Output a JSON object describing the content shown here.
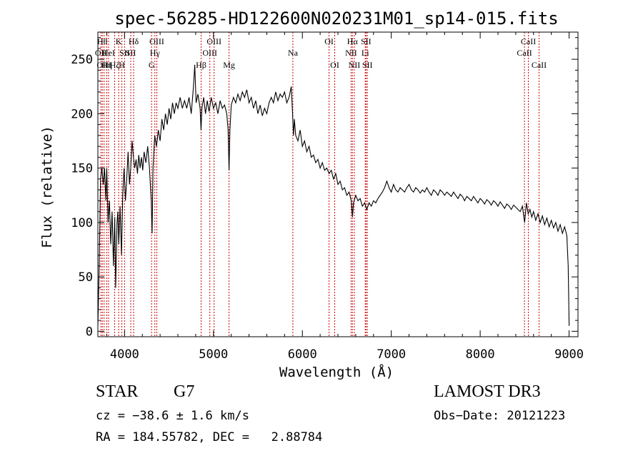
{
  "chart_data": {
    "type": "line",
    "title": "spec-56285-HD122600N020231M01_sp14-015.fits",
    "xlabel": "Wavelength (Å)",
    "ylabel": "Flux (relative)",
    "xlim": [
      3700,
      9100
    ],
    "ylim": [
      -5,
      275
    ],
    "xticks": [
      4000,
      5000,
      6000,
      7000,
      8000,
      9000
    ],
    "yticks": [
      0,
      50,
      100,
      150,
      200,
      250
    ],
    "grid": false,
    "line_color": "#000000",
    "marker_color": "#cc0000",
    "series": [
      {
        "points": [
          [
            3700,
            5
          ],
          [
            3715,
            60
          ],
          [
            3730,
            140
          ],
          [
            3745,
            150
          ],
          [
            3760,
            135
          ],
          [
            3775,
            150
          ],
          [
            3790,
            120
          ],
          [
            3800,
            150
          ],
          [
            3815,
            100
          ],
          [
            3830,
            120
          ],
          [
            3845,
            80
          ],
          [
            3860,
            110
          ],
          [
            3875,
            60
          ],
          [
            3890,
            105
          ],
          [
            3900,
            40
          ],
          [
            3915,
            100
          ],
          [
            3925,
            110
          ],
          [
            3935,
            80
          ],
          [
            3950,
            115
          ],
          [
            3965,
            70
          ],
          [
            3980,
            125
          ],
          [
            3995,
            150
          ],
          [
            4010,
            120
          ],
          [
            4025,
            140
          ],
          [
            4040,
            165
          ],
          [
            4055,
            135
          ],
          [
            4070,
            150
          ],
          [
            4085,
            175
          ],
          [
            4100,
            160
          ],
          [
            4115,
            150
          ],
          [
            4130,
            158
          ],
          [
            4145,
            145
          ],
          [
            4160,
            162
          ],
          [
            4175,
            150
          ],
          [
            4190,
            160
          ],
          [
            4205,
            148
          ],
          [
            4220,
            165
          ],
          [
            4240,
            155
          ],
          [
            4260,
            170
          ],
          [
            4280,
            150
          ],
          [
            4300,
            120
          ],
          [
            4310,
            90
          ],
          [
            4320,
            150
          ],
          [
            4340,
            180
          ],
          [
            4360,
            170
          ],
          [
            4380,
            185
          ],
          [
            4400,
            175
          ],
          [
            4420,
            195
          ],
          [
            4440,
            185
          ],
          [
            4460,
            200
          ],
          [
            4480,
            190
          ],
          [
            4500,
            205
          ],
          [
            4520,
            195
          ],
          [
            4540,
            210
          ],
          [
            4560,
            200
          ],
          [
            4580,
            210
          ],
          [
            4600,
            205
          ],
          [
            4625,
            215
          ],
          [
            4650,
            205
          ],
          [
            4675,
            212
          ],
          [
            4700,
            205
          ],
          [
            4725,
            215
          ],
          [
            4750,
            200
          ],
          [
            4775,
            225
          ],
          [
            4790,
            245
          ],
          [
            4805,
            210
          ],
          [
            4825,
            218
          ],
          [
            4850,
            205
          ],
          [
            4860,
            185
          ],
          [
            4870,
            205
          ],
          [
            4890,
            215
          ],
          [
            4910,
            200
          ],
          [
            4930,
            212
          ],
          [
            4950,
            202
          ],
          [
            4975,
            215
          ],
          [
            5000,
            205
          ],
          [
            5025,
            210
          ],
          [
            5050,
            200
          ],
          [
            5075,
            212
          ],
          [
            5100,
            205
          ],
          [
            5125,
            208
          ],
          [
            5150,
            200
          ],
          [
            5165,
            185
          ],
          [
            5175,
            148
          ],
          [
            5185,
            185
          ],
          [
            5200,
            208
          ],
          [
            5225,
            215
          ],
          [
            5250,
            210
          ],
          [
            5275,
            218
          ],
          [
            5300,
            212
          ],
          [
            5325,
            220
          ],
          [
            5350,
            215
          ],
          [
            5375,
            222
          ],
          [
            5400,
            210
          ],
          [
            5425,
            215
          ],
          [
            5450,
            205
          ],
          [
            5475,
            212
          ],
          [
            5500,
            200
          ],
          [
            5525,
            208
          ],
          [
            5550,
            198
          ],
          [
            5575,
            205
          ],
          [
            5600,
            200
          ],
          [
            5625,
            210
          ],
          [
            5650,
            215
          ],
          [
            5675,
            210
          ],
          [
            5700,
            220
          ],
          [
            5725,
            212
          ],
          [
            5750,
            218
          ],
          [
            5775,
            215
          ],
          [
            5800,
            220
          ],
          [
            5825,
            210
          ],
          [
            5850,
            215
          ],
          [
            5875,
            225
          ],
          [
            5890,
            200
          ],
          [
            5900,
            180
          ],
          [
            5910,
            195
          ],
          [
            5925,
            180
          ],
          [
            5950,
            175
          ],
          [
            5975,
            185
          ],
          [
            6000,
            170
          ],
          [
            6025,
            175
          ],
          [
            6050,
            165
          ],
          [
            6075,
            170
          ],
          [
            6100,
            160
          ],
          [
            6125,
            162
          ],
          [
            6150,
            155
          ],
          [
            6175,
            158
          ],
          [
            6200,
            150
          ],
          [
            6225,
            155
          ],
          [
            6250,
            148
          ],
          [
            6275,
            150
          ],
          [
            6300,
            145
          ],
          [
            6325,
            148
          ],
          [
            6350,
            140
          ],
          [
            6375,
            145
          ],
          [
            6400,
            135
          ],
          [
            6425,
            138
          ],
          [
            6450,
            130
          ],
          [
            6475,
            132
          ],
          [
            6500,
            125
          ],
          [
            6525,
            128
          ],
          [
            6550,
            120
          ],
          [
            6563,
            105
          ],
          [
            6575,
            118
          ],
          [
            6600,
            125
          ],
          [
            6625,
            120
          ],
          [
            6650,
            122
          ],
          [
            6675,
            115
          ],
          [
            6700,
            118
          ],
          [
            6725,
            112
          ],
          [
            6750,
            118
          ],
          [
            6775,
            115
          ],
          [
            6800,
            120
          ],
          [
            6825,
            118
          ],
          [
            6850,
            122
          ],
          [
            6875,
            125
          ],
          [
            6900,
            128
          ],
          [
            6925,
            132
          ],
          [
            6950,
            138
          ],
          [
            6975,
            132
          ],
          [
            7000,
            128
          ],
          [
            7025,
            135
          ],
          [
            7050,
            130
          ],
          [
            7075,
            128
          ],
          [
            7100,
            132
          ],
          [
            7125,
            130
          ],
          [
            7150,
            128
          ],
          [
            7175,
            132
          ],
          [
            7200,
            135
          ],
          [
            7225,
            130
          ],
          [
            7250,
            128
          ],
          [
            7275,
            132
          ],
          [
            7300,
            130
          ],
          [
            7325,
            127
          ],
          [
            7350,
            130
          ],
          [
            7375,
            128
          ],
          [
            7400,
            132
          ],
          [
            7425,
            128
          ],
          [
            7450,
            125
          ],
          [
            7475,
            130
          ],
          [
            7500,
            128
          ],
          [
            7525,
            125
          ],
          [
            7550,
            130
          ],
          [
            7575,
            128
          ],
          [
            7600,
            125
          ],
          [
            7625,
            128
          ],
          [
            7650,
            126
          ],
          [
            7675,
            124
          ],
          [
            7700,
            128
          ],
          [
            7725,
            125
          ],
          [
            7750,
            122
          ],
          [
            7775,
            126
          ],
          [
            7800,
            124
          ],
          [
            7825,
            120
          ],
          [
            7850,
            124
          ],
          [
            7875,
            122
          ],
          [
            7900,
            120
          ],
          [
            7925,
            124
          ],
          [
            7950,
            121
          ],
          [
            7975,
            118
          ],
          [
            8000,
            122
          ],
          [
            8025,
            120
          ],
          [
            8050,
            117
          ],
          [
            8075,
            121
          ],
          [
            8100,
            119
          ],
          [
            8125,
            116
          ],
          [
            8150,
            120
          ],
          [
            8175,
            118
          ],
          [
            8200,
            115
          ],
          [
            8225,
            119
          ],
          [
            8250,
            116
          ],
          [
            8275,
            113
          ],
          [
            8300,
            117
          ],
          [
            8325,
            115
          ],
          [
            8350,
            112
          ],
          [
            8375,
            116
          ],
          [
            8400,
            114
          ],
          [
            8425,
            112
          ],
          [
            8450,
            110
          ],
          [
            8475,
            115
          ],
          [
            8500,
            100
          ],
          [
            8520,
            118
          ],
          [
            8540,
            108
          ],
          [
            8560,
            112
          ],
          [
            8580,
            105
          ],
          [
            8600,
            110
          ],
          [
            8625,
            102
          ],
          [
            8650,
            108
          ],
          [
            8675,
            100
          ],
          [
            8700,
            106
          ],
          [
            8725,
            98
          ],
          [
            8750,
            104
          ],
          [
            8775,
            96
          ],
          [
            8800,
            102
          ],
          [
            8825,
            95
          ],
          [
            8850,
            100
          ],
          [
            8875,
            92
          ],
          [
            8900,
            98
          ],
          [
            8925,
            90
          ],
          [
            8950,
            96
          ],
          [
            8975,
            88
          ],
          [
            8990,
            60
          ],
          [
            9000,
            5
          ]
        ]
      }
    ],
    "lines": [
      {
        "x": 3734,
        "label": "OII",
        "row": 1
      },
      {
        "x": 3750,
        "label": "Hθ",
        "row": 0
      },
      {
        "x": 3770,
        "label": "OIII",
        "row": 2
      },
      {
        "x": 3800,
        "label": "Hη",
        "row": 2
      },
      {
        "x": 3820,
        "label": "HeI",
        "row": 1
      },
      {
        "x": 3889,
        "label": "Hζ",
        "row": 2
      },
      {
        "x": 3934,
        "label": "K",
        "row": 0
      },
      {
        "x": 3970,
        "label": "H",
        "row": 2
      },
      {
        "x": 4000,
        "label": "SII",
        "row": 1
      },
      {
        "x": 4102,
        "label": "Hδ",
        "row": 0
      },
      {
        "x": 4070,
        "label": "SII",
        "row": 1
      },
      {
        "x": 4304,
        "label": "G",
        "row": 2
      },
      {
        "x": 4341,
        "label": "Hγ",
        "row": 1
      },
      {
        "x": 4363,
        "label": "OIII",
        "row": 0
      },
      {
        "x": 4861,
        "label": "Hβ",
        "row": 2
      },
      {
        "x": 4959,
        "label": "OIII",
        "row": 1
      },
      {
        "x": 5007,
        "label": "OIII",
        "row": 0
      },
      {
        "x": 5175,
        "label": "Mg",
        "row": 2
      },
      {
        "x": 5893,
        "label": "Na",
        "row": 1
      },
      {
        "x": 6300,
        "label": "OI",
        "row": 0
      },
      {
        "x": 6364,
        "label": "OI",
        "row": 2
      },
      {
        "x": 6548,
        "label": "NII",
        "row": 1
      },
      {
        "x": 6563,
        "label": "Hα",
        "row": 0
      },
      {
        "x": 6584,
        "label": "NII",
        "row": 2
      },
      {
        "x": 6707,
        "label": "Li",
        "row": 1
      },
      {
        "x": 6716,
        "label": "SII",
        "row": 0
      },
      {
        "x": 6731,
        "label": "SII",
        "row": 2
      },
      {
        "x": 8498,
        "label": "CaII",
        "row": 1
      },
      {
        "x": 8542,
        "label": "CaII",
        "row": 0
      },
      {
        "x": 8662,
        "label": "CaII",
        "row": 2
      }
    ]
  },
  "footer": {
    "class_label": "STAR",
    "subclass": "G7",
    "survey": "LAMOST DR3",
    "cz": "cz = −38.6 ± 1.6 km/s",
    "obs_date": "Obs−Date: 20121223",
    "radec": "RA = 184.55782, DEC =   2.88784"
  }
}
